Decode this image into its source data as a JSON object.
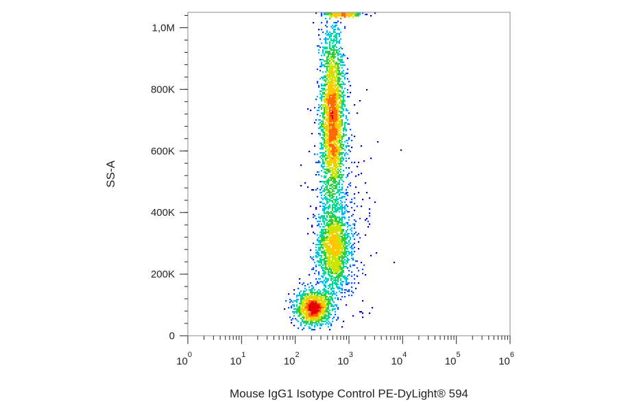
{
  "chart_data": {
    "type": "scatter",
    "subtype": "flow-cytometry-density-dot-plot",
    "title": "",
    "xlabel": "Mouse IgG1 Isotype Control PE-DyLight® 594",
    "ylabel": "SS-A",
    "x_scale": "log",
    "xlim": [
      1,
      1000000
    ],
    "x_ticks": [
      {
        "base": "10",
        "exp": "0"
      },
      {
        "base": "10",
        "exp": "1"
      },
      {
        "base": "10",
        "exp": "2"
      },
      {
        "base": "10",
        "exp": "3"
      },
      {
        "base": "10",
        "exp": "4"
      },
      {
        "base": "10",
        "exp": "5"
      },
      {
        "base": "10",
        "exp": "6"
      }
    ],
    "y_scale": "linear",
    "ylim": [
      0,
      1050000
    ],
    "y_ticks": [
      {
        "value": 0,
        "label": "0"
      },
      {
        "value": 200000,
        "label": "200K"
      },
      {
        "value": 400000,
        "label": "400K"
      },
      {
        "value": 600000,
        "label": "600K"
      },
      {
        "value": 800000,
        "label": "800K"
      },
      {
        "value": 1000000,
        "label": "1,0M"
      }
    ],
    "grid": false,
    "legend": "none",
    "colormap": [
      "#0000cc",
      "#0a4cff",
      "#00b4ff",
      "#00d8a0",
      "#2ecc40",
      "#c8e600",
      "#ffc800",
      "#ff6a00",
      "#e60000"
    ],
    "populations": [
      {
        "name": "low-SSC cluster",
        "center_x": 220,
        "center_y": 90000,
        "spread_log": 0.17,
        "spread_y": 28000,
        "weight": 0.18
      },
      {
        "name": "high-SSC band",
        "center_x": 500,
        "center_y": 700000,
        "spread_log": 0.11,
        "spread_y": 150000,
        "weight": 0.5
      },
      {
        "name": "mid-SSC population",
        "center_x": 520,
        "center_y": 280000,
        "spread_log": 0.15,
        "spread_y": 70000,
        "weight": 0.22
      },
      {
        "name": "saturated events",
        "center_x": 800,
        "center_y": 1045000,
        "spread_log": 0.15,
        "spread_y": 4000,
        "weight": 0.05
      },
      {
        "name": "scattered events",
        "center_x": 700,
        "center_y": 350000,
        "spread_log": 0.3,
        "spread_y": 200000,
        "weight": 0.05
      }
    ]
  }
}
